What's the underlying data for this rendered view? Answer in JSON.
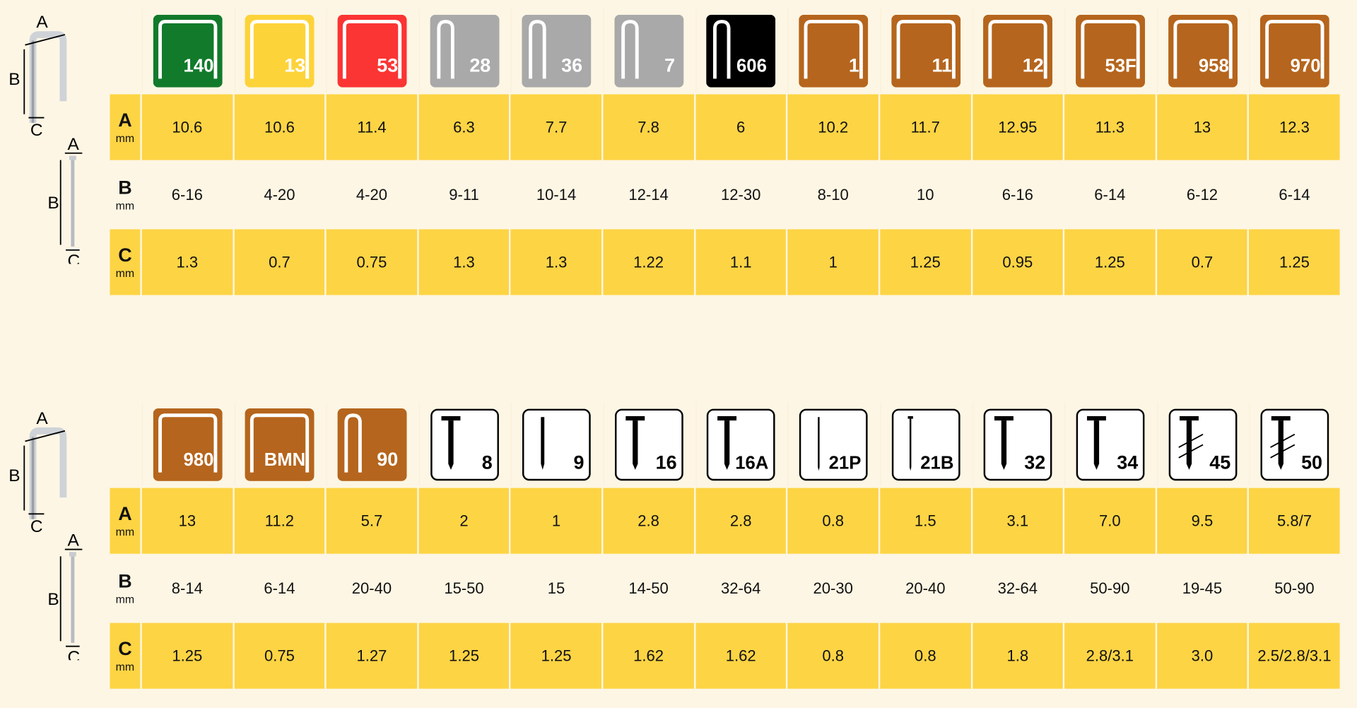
{
  "row_labels": [
    {
      "letter": "A",
      "unit": "mm"
    },
    {
      "letter": "B",
      "unit": "mm"
    },
    {
      "letter": "C",
      "unit": "mm"
    }
  ],
  "diagram_labels": {
    "a": "A",
    "b": "B",
    "c": "C"
  },
  "colors": {
    "yellow_row": "#fdd444",
    "background": "#fdf6e4",
    "green": "#127a2b",
    "yellow": "#fdd33a",
    "red": "#fb3434",
    "gray": "#a9a9a9",
    "black": "#000000",
    "brown": "#b5651d"
  },
  "tables": [
    {
      "columns": [
        {
          "code": "140",
          "badge_color": "#127a2b",
          "icon": "staple-wide-icon",
          "A": "10.6",
          "B": "6-16",
          "C": "1.3"
        },
        {
          "code": "13",
          "badge_color": "#fdd33a",
          "icon": "staple-wide-icon",
          "A": "10.6",
          "B": "4-20",
          "C": "0.7"
        },
        {
          "code": "53",
          "badge_color": "#fb3434",
          "icon": "staple-wide-icon",
          "A": "11.4",
          "B": "4-20",
          "C": "0.75"
        },
        {
          "code": "28",
          "badge_color": "#a9a9a9",
          "icon": "staple-narrow-icon",
          "A": "6.3",
          "B": "9-11",
          "C": "1.3"
        },
        {
          "code": "36",
          "badge_color": "#a9a9a9",
          "icon": "staple-narrow-icon",
          "A": "7.7",
          "B": "10-14",
          "C": "1.3"
        },
        {
          "code": "7",
          "badge_color": "#a9a9a9",
          "icon": "staple-narrow-icon",
          "A": "7.8",
          "B": "12-14",
          "C": "1.22"
        },
        {
          "code": "606",
          "badge_color": "#000000",
          "icon": "staple-narrow-icon",
          "A": "6",
          "B": "12-30",
          "C": "1.1"
        },
        {
          "code": "1",
          "badge_color": "#b5651d",
          "icon": "staple-wide-icon",
          "A": "10.2",
          "B": "8-10",
          "C": "1"
        },
        {
          "code": "11",
          "badge_color": "#b5651d",
          "icon": "staple-wide-icon",
          "A": "11.7",
          "B": "10",
          "C": "1.25"
        },
        {
          "code": "12",
          "badge_color": "#b5651d",
          "icon": "staple-wide-icon",
          "A": "12.95",
          "B": "6-16",
          "C": "0.95"
        },
        {
          "code": "53F",
          "badge_color": "#b5651d",
          "icon": "staple-wide-icon",
          "A": "11.3",
          "B": "6-14",
          "C": "1.25"
        },
        {
          "code": "958",
          "badge_color": "#b5651d",
          "icon": "staple-wide-icon",
          "A": "13",
          "B": "6-12",
          "C": "0.7"
        },
        {
          "code": "970",
          "badge_color": "#b5651d",
          "icon": "staple-wide-icon",
          "A": "12.3",
          "B": "6-14",
          "C": "1.25"
        }
      ]
    },
    {
      "columns": [
        {
          "code": "980",
          "badge_color": "#b5651d",
          "icon": "staple-wide-icon",
          "A": "13",
          "B": "8-14",
          "C": "1.25"
        },
        {
          "code": "BMN",
          "badge_color": "#b5651d",
          "icon": "staple-wide-icon",
          "A": "11.2",
          "B": "6-14",
          "C": "0.75"
        },
        {
          "code": "90",
          "badge_color": "#b5651d",
          "icon": "staple-narrow-icon",
          "A": "5.7",
          "B": "20-40",
          "C": "1.27"
        },
        {
          "code": "8",
          "badge_color": "#ffffff",
          "icon": "nail-t-icon",
          "A": "2",
          "B": "15-50",
          "C": "1.25"
        },
        {
          "code": "9",
          "badge_color": "#ffffff",
          "icon": "nail-headless-icon",
          "A": "1",
          "B": "15",
          "C": "1.25"
        },
        {
          "code": "16",
          "badge_color": "#ffffff",
          "icon": "nail-t-icon",
          "A": "2.8",
          "B": "14-50",
          "C": "1.62"
        },
        {
          "code": "16A",
          "badge_color": "#ffffff",
          "icon": "nail-t-icon",
          "A": "2.8",
          "B": "32-64",
          "C": "1.62"
        },
        {
          "code": "21P",
          "badge_color": "#ffffff",
          "icon": "pin-icon",
          "A": "0.8",
          "B": "20-30",
          "C": "0.8"
        },
        {
          "code": "21B",
          "badge_color": "#ffffff",
          "icon": "brad-icon",
          "A": "1.5",
          "B": "20-40",
          "C": "0.8"
        },
        {
          "code": "32",
          "badge_color": "#ffffff",
          "icon": "nail-t-icon",
          "A": "3.1",
          "B": "32-64",
          "C": "1.8"
        },
        {
          "code": "34",
          "badge_color": "#ffffff",
          "icon": "nail-t-icon",
          "A": "7.0",
          "B": "50-90",
          "C": "2.8/3.1"
        },
        {
          "code": "45",
          "badge_color": "#ffffff",
          "icon": "ring-nail-icon",
          "A": "9.5",
          "B": "19-45",
          "C": "3.0"
        },
        {
          "code": "50",
          "badge_color": "#ffffff",
          "icon": "ring-nail-icon",
          "A": "5.8/7",
          "B": "50-90",
          "C": "2.5/2.8/3.1"
        }
      ]
    }
  ]
}
